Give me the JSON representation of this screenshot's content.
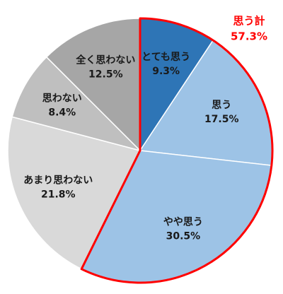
{
  "chart_data": {
    "type": "pie",
    "categories": [
      "とても思う",
      "思う",
      "やや思う",
      "あまり思わない",
      "思わない",
      "全く思わない"
    ],
    "values": [
      9.3,
      17.5,
      30.5,
      21.8,
      8.4,
      12.5
    ],
    "value_labels": [
      "9.3%",
      "17.5%",
      "30.5%",
      "21.8%",
      "8.4%",
      "12.5%"
    ],
    "colors": [
      "#2e75b6",
      "#9dc3e6",
      "#9dc3e6",
      "#d9d9d9",
      "#bfbfbf",
      "#a6a6a6"
    ],
    "annotation": {
      "label": "思う計",
      "value": 57.3,
      "value_label": "57.3%",
      "color": "#ff0000"
    }
  }
}
